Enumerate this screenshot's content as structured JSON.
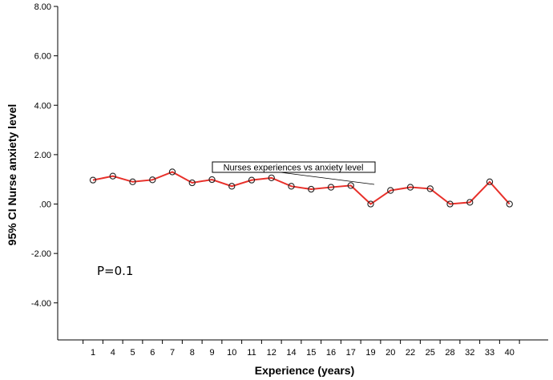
{
  "chart_data": {
    "type": "line",
    "title": "",
    "xlabel": "Experience (years)",
    "ylabel": "95% CI Nurse anxiety level",
    "categories": [
      "1",
      "4",
      "5",
      "6",
      "7",
      "8",
      "9",
      "10",
      "11",
      "12",
      "14",
      "15",
      "16",
      "17",
      "19",
      "20",
      "22",
      "25",
      "28",
      "32",
      "33",
      "40"
    ],
    "series": [
      {
        "values": [
          0.97,
          1.13,
          0.9,
          0.98,
          1.3,
          0.86,
          0.99,
          0.72,
          0.97,
          1.06,
          0.72,
          0.6,
          0.68,
          0.75,
          0.0,
          0.55,
          0.68,
          0.62,
          0.0,
          0.07,
          0.9,
          0.0
        ]
      }
    ],
    "ylim": [
      -5.5,
      8.0
    ],
    "yticks": [
      8.0,
      6.0,
      4.0,
      2.0,
      0.0,
      -2.0,
      -4.0
    ],
    "ytick_labels": [
      "8.00",
      "6.00",
      "4.00",
      "2.00",
      ".00",
      "-2.00",
      "-4.00"
    ],
    "line_color": "#e8302a",
    "marker_color": "#222222",
    "annotation": "Nurses experiences vs anxiety level",
    "pvalue_text": "P=0.1",
    "grid": false
  }
}
